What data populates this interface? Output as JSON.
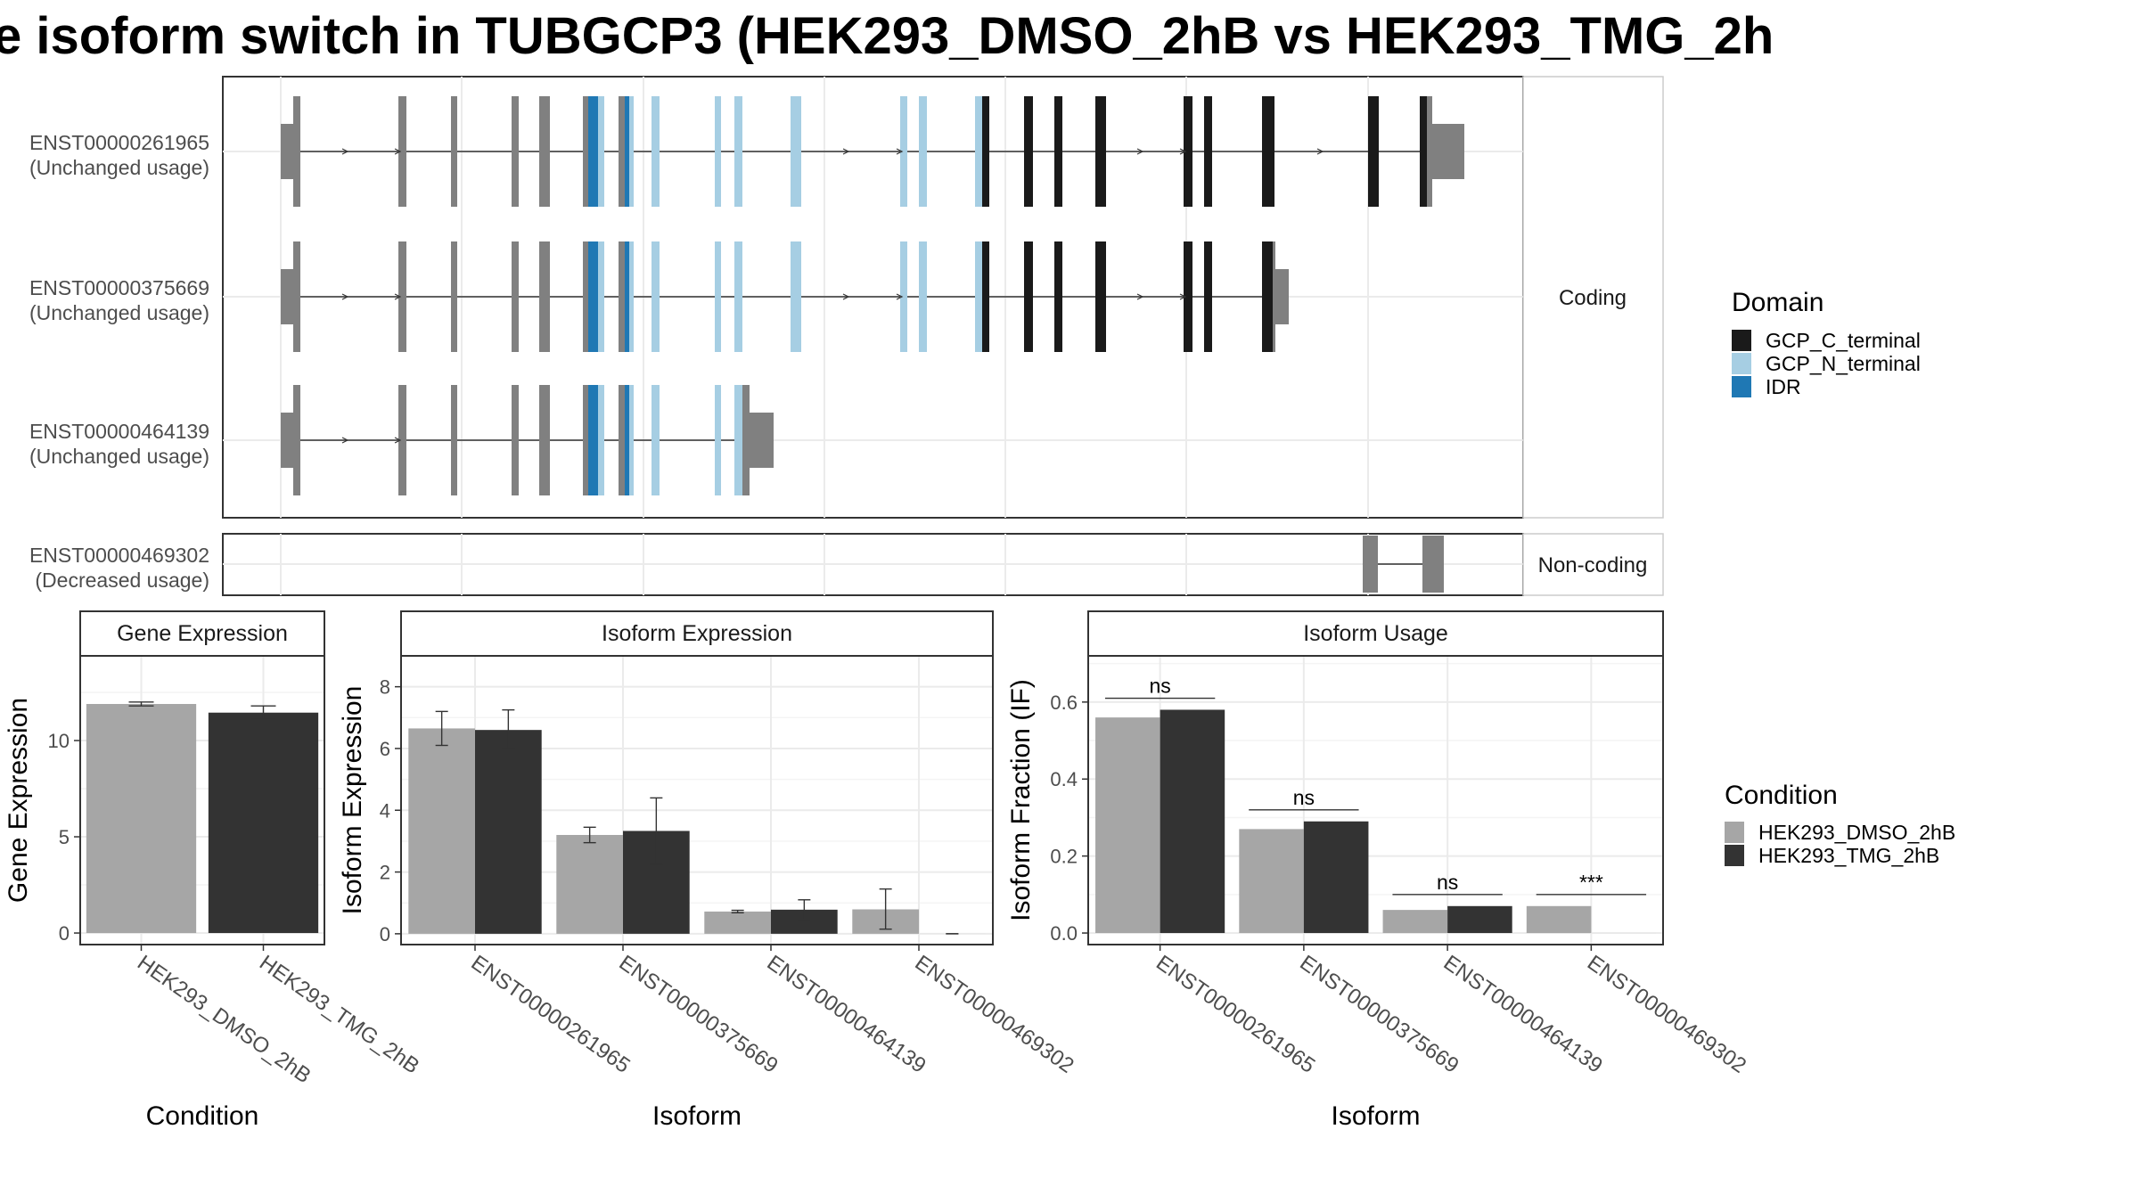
{
  "title": "e isoform switch in TUBGCP3 (HEK293_DMSO_2hB vs HEK293_TMG_2h",
  "colors": {
    "utr": "#808080",
    "GCP_C_terminal": "#1a1a1a",
    "GCP_N_terminal": "#a6cee3",
    "IDR": "#1f78b4",
    "dmso": "#a6a6a6",
    "tmg": "#333333",
    "grid": "#ebebeb",
    "border": "#333333"
  },
  "structure": {
    "facets": {
      "coding": "Coding",
      "noncoding": "Non-coding"
    },
    "isoforms": [
      {
        "id": "ENST00000261965",
        "usage": "(Unchanged usage)",
        "facet": "coding"
      },
      {
        "id": "ENST00000375669",
        "usage": "(Unchanged usage)",
        "facet": "coding"
      },
      {
        "id": "ENST00000464139",
        "usage": "(Unchanged usage)",
        "facet": "coding"
      },
      {
        "id": "ENST00000469302",
        "usage": "(Decreased usage)",
        "facet": "noncoding"
      }
    ],
    "domain_legend": {
      "title": "Domain",
      "items": [
        {
          "name": "GCP_C_terminal",
          "color_key": "GCP_C_terminal"
        },
        {
          "name": "GCP_N_terminal",
          "color_key": "GCP_N_terminal"
        },
        {
          "name": "IDR",
          "color_key": "IDR"
        }
      ]
    }
  },
  "condition_legend": {
    "title": "Condition",
    "items": [
      {
        "name": "HEK293_DMSO_2hB",
        "color_key": "dmso"
      },
      {
        "name": "HEK293_TMG_2hB",
        "color_key": "tmg"
      }
    ]
  },
  "chart_data": [
    {
      "type": "bar",
      "title": "Gene Expression",
      "xlabel": "Condition",
      "ylabel": "Gene Expression",
      "categories": [
        "HEK293_DMSO_2hB",
        "HEK293_TMG_2hB"
      ],
      "values": [
        11.9,
        11.45
      ],
      "error": [
        [
          11.8,
          12.0
        ],
        [
          11.1,
          11.8
        ]
      ],
      "ylim": [
        -0.6,
        14.4
      ],
      "yticks": [
        0,
        5,
        10
      ],
      "grid": true
    },
    {
      "type": "bar",
      "title": "Isoform Expression",
      "xlabel": "Isoform",
      "ylabel": "Isoform Expression",
      "categories": [
        "ENST00000261965",
        "ENST00000375669",
        "ENST00000464139",
        "ENST00000469302"
      ],
      "series": [
        {
          "name": "HEK293_DMSO_2hB",
          "values": [
            6.65,
            3.2,
            0.72,
            0.79
          ],
          "error": [
            [
              6.1,
              7.2
            ],
            [
              2.95,
              3.45
            ],
            [
              0.68,
              0.76
            ],
            [
              0.15,
              1.45
            ]
          ]
        },
        {
          "name": "HEK293_TMG_2hB",
          "values": [
            6.6,
            3.33,
            0.78,
            0.0
          ],
          "error": [
            [
              6.0,
              7.25
            ],
            [
              2.25,
              4.4
            ],
            [
              0.45,
              1.1
            ],
            [
              0.0,
              0.0
            ]
          ]
        }
      ],
      "ylim": [
        -0.35,
        9.0
      ],
      "yticks": [
        0,
        2,
        4,
        6,
        8
      ],
      "grid": true
    },
    {
      "type": "bar",
      "title": "Isoform Usage",
      "xlabel": "Isoform",
      "ylabel": "Isoform Fraction (IF)",
      "categories": [
        "ENST00000261965",
        "ENST00000375669",
        "ENST00000464139",
        "ENST00000469302"
      ],
      "series": [
        {
          "name": "HEK293_DMSO_2hB",
          "values": [
            0.56,
            0.27,
            0.06,
            0.07
          ]
        },
        {
          "name": "HEK293_TMG_2hB",
          "values": [
            0.58,
            0.29,
            0.07,
            0.0
          ]
        }
      ],
      "significance": [
        "ns",
        "ns",
        "ns",
        "***"
      ],
      "sig_level": [
        0.61,
        0.32,
        0.1,
        0.1
      ],
      "ylim": [
        -0.03,
        0.72
      ],
      "yticks": [
        0.0,
        0.2,
        0.4,
        0.6
      ],
      "ytick_labels": [
        "0.0",
        "0.2",
        "0.4",
        "0.6"
      ],
      "grid": true
    }
  ]
}
